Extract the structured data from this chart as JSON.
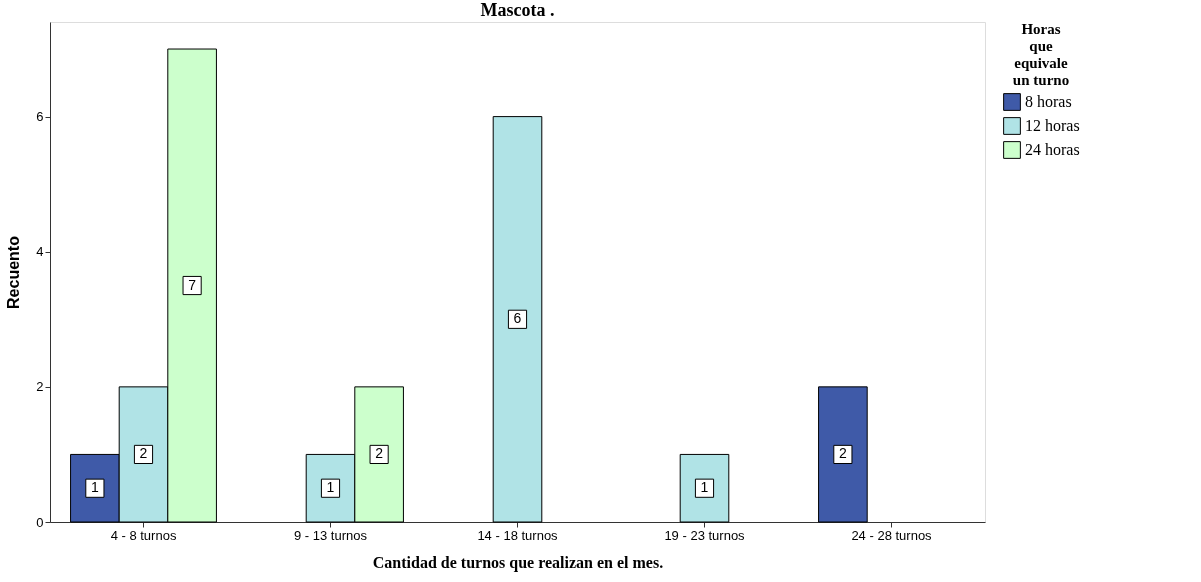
{
  "chart_data": {
    "type": "bar",
    "title": "Mascota .",
    "xlabel": "Cantidad de turnos que realizan en el mes.",
    "ylabel": "Recuento",
    "legend_title": "Horas que equivale un turno",
    "categories": [
      "4 - 8 turnos",
      "9 - 13 turnos",
      "14 - 18 turnos",
      "19 - 23 turnos",
      "24 - 28 turnos"
    ],
    "series": [
      {
        "name": "8 horas",
        "color": "#3f5aa8",
        "values": [
          1,
          null,
          null,
          null,
          2
        ]
      },
      {
        "name": "12 horas",
        "color": "#b0e3e6",
        "values": [
          2,
          1,
          6,
          1,
          null
        ]
      },
      {
        "name": "24 horas",
        "color": "#ccffcc",
        "values": [
          7,
          2,
          null,
          null,
          null
        ]
      }
    ],
    "ylim": [
      0,
      7.4
    ],
    "yticks": [
      0,
      2,
      4,
      6
    ],
    "grid": false,
    "legend": "right",
    "data_labels": true
  }
}
